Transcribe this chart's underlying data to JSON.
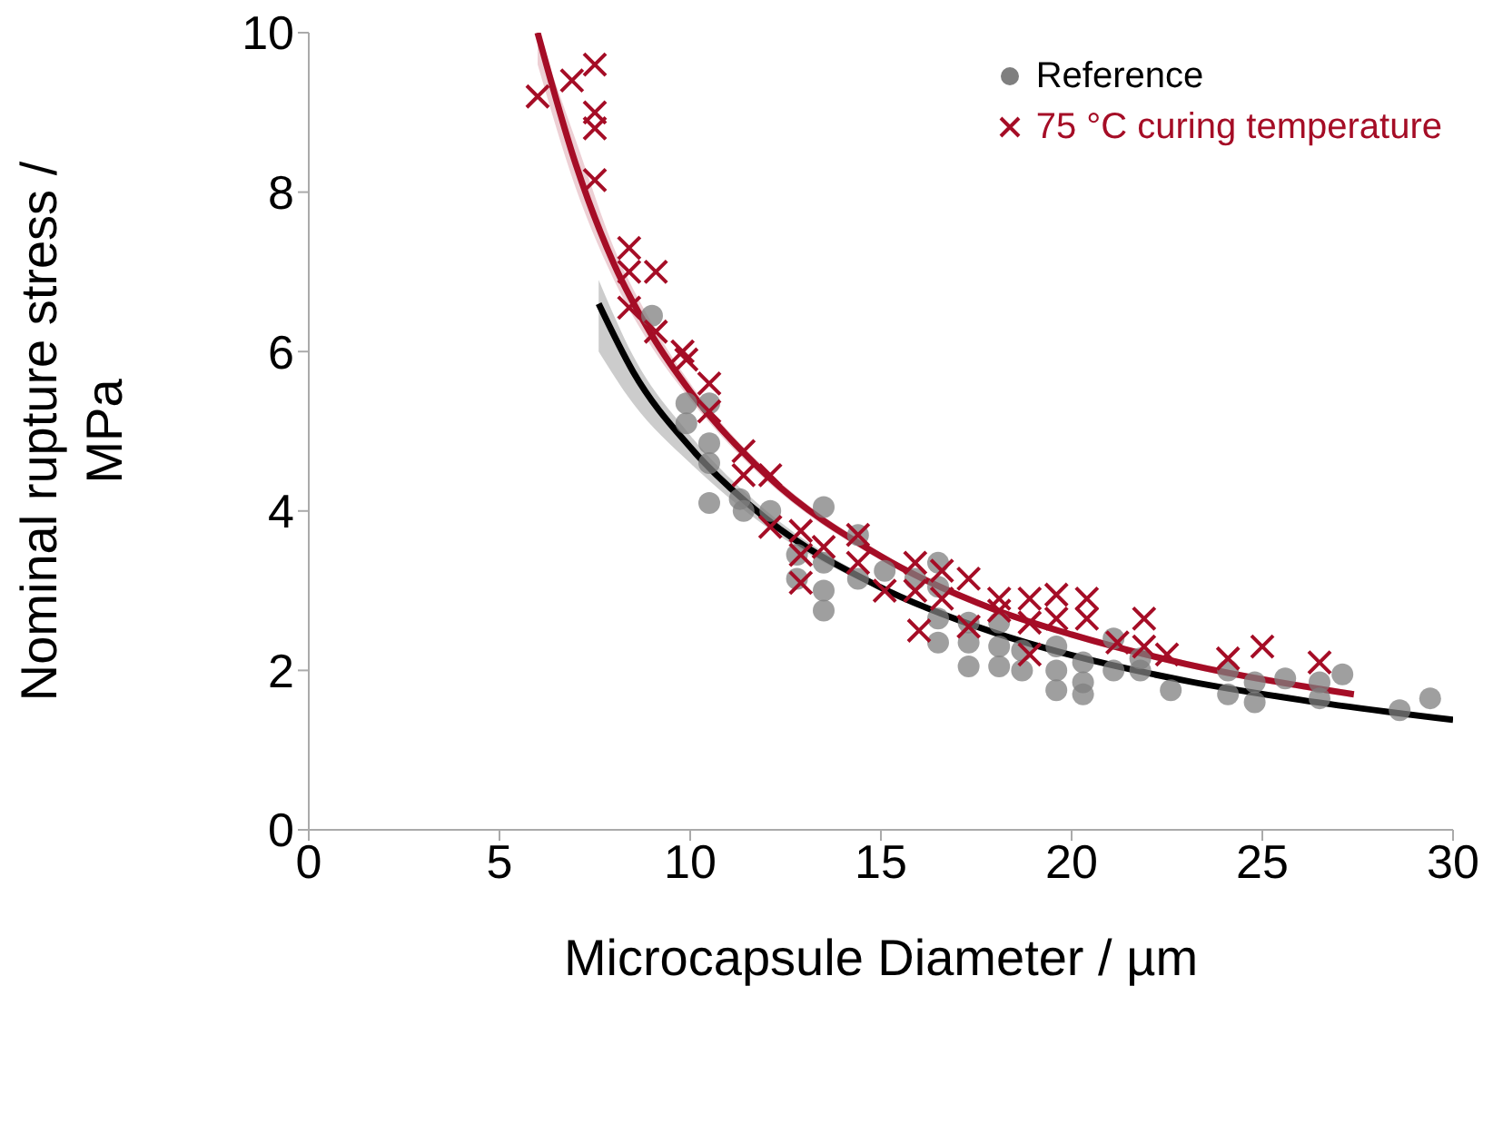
{
  "chart_data": {
    "type": "scatter",
    "xlabel": "Microcapsule Diameter / µm",
    "ylabel": "Nominal rupture stress / MPa",
    "xlim": [
      0,
      30
    ],
    "xticks": [
      0,
      5,
      10,
      15,
      20,
      25,
      30
    ],
    "ylim": [
      0,
      10
    ],
    "yticks": [
      0,
      2,
      4,
      6,
      8,
      10
    ],
    "legend": "top right",
    "series": [
      {
        "type": "line",
        "color": "#000000",
        "marker": "none",
        "x": [
          7.6,
          8.5,
          10,
          12,
          15,
          18,
          20,
          23,
          26,
          30
        ],
        "values": [
          6.6,
          5.75,
          4.8,
          3.9,
          3.04,
          2.47,
          2.19,
          1.87,
          1.63,
          1.38
        ],
        "lower": [
          6.0,
          5.35,
          4.6,
          3.8,
          3.0,
          2.44,
          2.16,
          1.84,
          1.6,
          1.35
        ],
        "upper": [
          6.9,
          5.95,
          4.95,
          4.0,
          3.08,
          2.5,
          2.22,
          1.9,
          1.66,
          1.41
        ]
      },
      {
        "type": "line",
        "color": "#a50d26",
        "marker": "none",
        "x": [
          6,
          7,
          8,
          9,
          10,
          12,
          15,
          18,
          20,
          23,
          27.4
        ],
        "values": [
          10,
          8.35,
          7.1,
          6.2,
          5.5,
          4.45,
          3.43,
          2.76,
          2.45,
          2.08,
          1.7
        ],
        "lower": [
          9.6,
          8.05,
          6.9,
          6.05,
          5.4,
          4.38,
          3.38,
          2.72,
          2.41,
          2.04,
          1.66
        ],
        "upper": [
          10,
          8.65,
          7.3,
          6.35,
          5.6,
          4.52,
          3.48,
          2.8,
          2.49,
          2.12,
          1.74
        ]
      },
      {
        "name": "Reference",
        "color": "#7f7f7f",
        "marker": "circle",
        "x": [
          9.0,
          9.9,
          9.9,
          10.5,
          10.5,
          10.5,
          10.5,
          11.3,
          11.4,
          12.1,
          12.8,
          12.8,
          13.5,
          13.5,
          13.5,
          13.5,
          14.4,
          14.4,
          15.1,
          15.9,
          16.5,
          16.5,
          16.5,
          16.5,
          17.3,
          17.3,
          17.3,
          18.1,
          18.1,
          18.1,
          18.7,
          18.7,
          19.6,
          19.6,
          19.6,
          20.3,
          20.3,
          20.3,
          21.1,
          21.1,
          21.8,
          21.8,
          22.6,
          24.1,
          24.1,
          24.8,
          24.8,
          25.6,
          26.5,
          26.5,
          27.1,
          28.6,
          29.4
        ],
        "values": [
          6.45,
          5.35,
          5.1,
          5.35,
          4.85,
          4.6,
          4.1,
          4.15,
          4.0,
          4.0,
          3.45,
          3.15,
          4.05,
          3.35,
          3.0,
          2.75,
          3.7,
          3.15,
          3.25,
          3.15,
          3.35,
          3.05,
          2.65,
          2.35,
          2.6,
          2.35,
          2.05,
          2.6,
          2.3,
          2.05,
          2.25,
          2.0,
          2.3,
          2.0,
          1.75,
          2.1,
          1.85,
          1.7,
          2.0,
          2.4,
          2.0,
          2.15,
          1.75,
          2.0,
          1.7,
          1.85,
          1.6,
          1.9,
          1.85,
          1.65,
          1.95,
          1.5,
          1.65
        ]
      },
      {
        "name": "75 °C curing temperature",
        "color": "#a50d26",
        "marker": "cross",
        "x": [
          6.0,
          6.9,
          7.5,
          7.5,
          7.5,
          7.5,
          8.4,
          8.4,
          9.1,
          8.4,
          9.1,
          9.8,
          9.9,
          10.5,
          10.5,
          11.4,
          11.4,
          12.1,
          12.1,
          12.9,
          12.9,
          12.9,
          13.5,
          14.4,
          14.4,
          15.1,
          15.9,
          15.9,
          16.0,
          16.6,
          16.6,
          17.3,
          17.3,
          18.1,
          18.1,
          18.9,
          18.9,
          18.9,
          19.6,
          19.6,
          20.4,
          20.4,
          21.2,
          21.9,
          21.9,
          22.5,
          24.1,
          25.0,
          26.5
        ],
        "values": [
          9.2,
          9.4,
          9.6,
          9.0,
          8.8,
          8.15,
          7.3,
          7.0,
          7.0,
          6.55,
          6.25,
          6.0,
          5.9,
          5.6,
          5.25,
          4.75,
          4.45,
          4.45,
          3.8,
          3.75,
          3.45,
          3.1,
          3.55,
          3.7,
          3.35,
          3.0,
          3.35,
          3.0,
          2.5,
          3.25,
          2.9,
          3.15,
          2.55,
          2.9,
          2.75,
          2.9,
          2.6,
          2.2,
          2.95,
          2.65,
          2.9,
          2.65,
          2.35,
          2.65,
          2.3,
          2.2,
          2.15,
          2.3,
          2.1
        ]
      }
    ]
  }
}
